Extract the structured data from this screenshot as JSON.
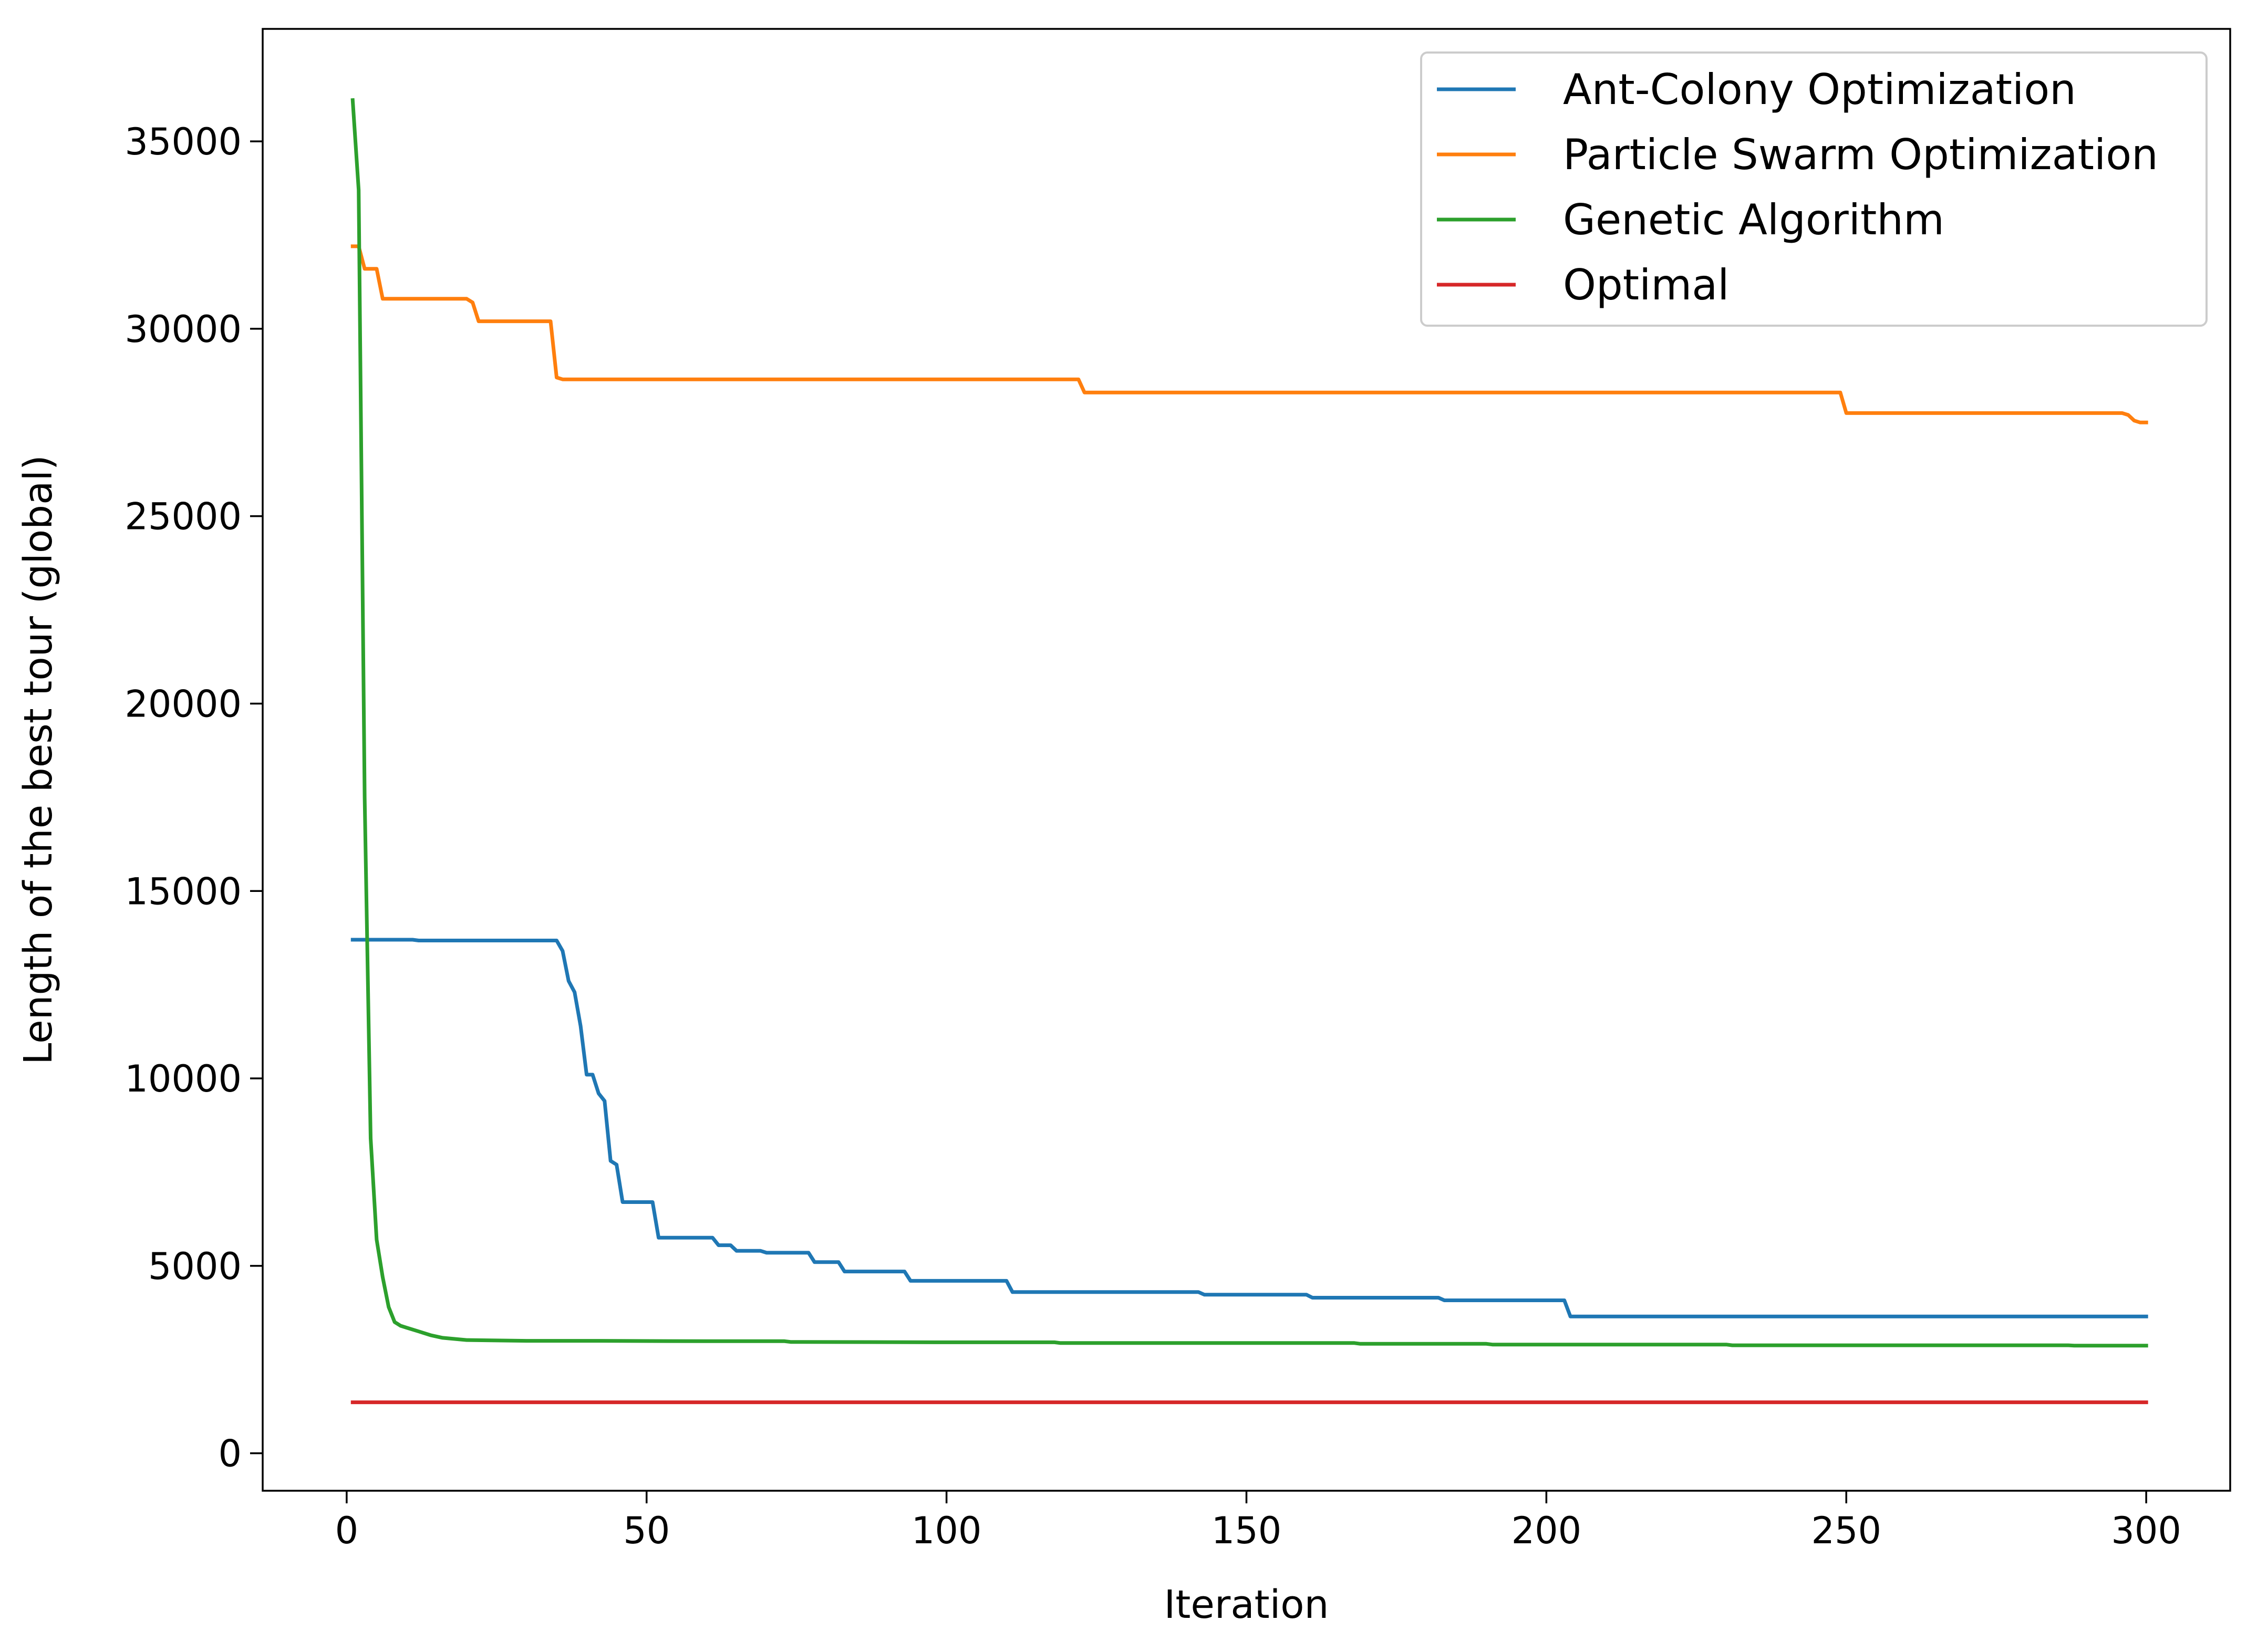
{
  "chart_data": {
    "type": "line",
    "title": "",
    "xlabel": "Iteration",
    "ylabel": "Length of the best tour (global)",
    "xlim": [
      -14,
      314
    ],
    "ylim": [
      -1000,
      38000
    ],
    "xticks": [
      0,
      50,
      100,
      150,
      200,
      250,
      300
    ],
    "yticks": [
      0,
      5000,
      10000,
      15000,
      20000,
      25000,
      30000,
      35000
    ],
    "grid": false,
    "legend_position": "top-right",
    "series": [
      {
        "name": "Ant-Colony Optimization",
        "color": "#1f77b4",
        "x": [
          1,
          11,
          12,
          35,
          36,
          37,
          38,
          39,
          40,
          41,
          42,
          43,
          44,
          45,
          46,
          51,
          52,
          61,
          62,
          64,
          65,
          69,
          70,
          77,
          78,
          82,
          83,
          93,
          94,
          110,
          111,
          142,
          143,
          160,
          161,
          182,
          183,
          203,
          204,
          300
        ],
        "y": [
          13700,
          13700,
          13680,
          13680,
          13400,
          12600,
          12300,
          11400,
          10100,
          10100,
          9600,
          9400,
          7800,
          7700,
          6700,
          6700,
          5750,
          5750,
          5550,
          5550,
          5400,
          5400,
          5350,
          5350,
          5100,
          5100,
          4850,
          4850,
          4600,
          4600,
          4300,
          4300,
          4230,
          4230,
          4150,
          4150,
          4080,
          4080,
          3650,
          3650
        ]
      },
      {
        "name": "Particle Swarm Optimization",
        "color": "#ff7f0e",
        "x": [
          1,
          2,
          3,
          5,
          6,
          20,
          21,
          22,
          34,
          35,
          36,
          122,
          123,
          249,
          250,
          296,
          297,
          298,
          299,
          300
        ],
        "y": [
          32200,
          32200,
          31600,
          31600,
          30800,
          30800,
          30700,
          30200,
          30200,
          28700,
          28650,
          28650,
          28300,
          28300,
          27750,
          27750,
          27700,
          27550,
          27500,
          27500
        ]
      },
      {
        "name": "Genetic Algorithm",
        "color": "#2ca02c",
        "x": [
          1,
          2,
          3,
          4,
          5,
          6,
          7,
          8,
          9,
          10,
          12,
          14,
          16,
          18,
          20,
          25,
          30,
          40,
          60,
          73,
          74,
          100,
          118,
          119,
          150,
          168,
          169,
          190,
          191,
          230,
          231,
          287,
          288,
          300
        ],
        "y": [
          36100,
          33700,
          17500,
          8400,
          5700,
          4700,
          3900,
          3500,
          3400,
          3350,
          3250,
          3150,
          3080,
          3050,
          3020,
          3010,
          3000,
          3000,
          2990,
          2990,
          2970,
          2960,
          2960,
          2940,
          2940,
          2940,
          2920,
          2920,
          2900,
          2900,
          2880,
          2880,
          2870,
          2870
        ]
      },
      {
        "name": "Optimal",
        "color": "#d62728",
        "x": [
          1,
          300
        ],
        "y": [
          1360,
          1360
        ]
      }
    ]
  }
}
